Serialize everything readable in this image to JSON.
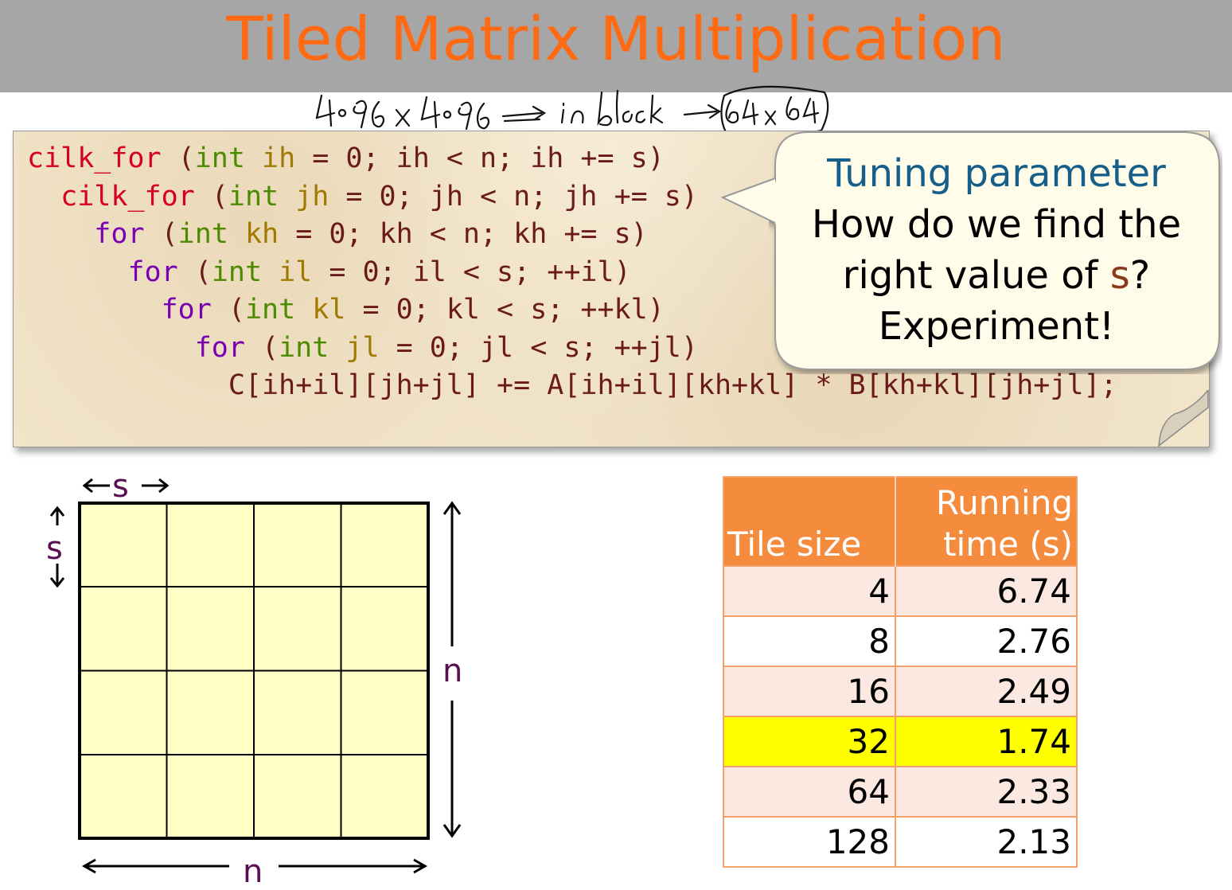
{
  "title": "Tiled Matrix Multiplication",
  "annotation": "4096 x 4096 -> in block -> 64x64",
  "code": [
    {
      "indent": "",
      "keyword": "cilk_for",
      "kwclass": "kw-cilk",
      "var": "ih",
      "init": " = 0; ",
      "cond": "ih < n; ih += s)"
    },
    {
      "indent": "  ",
      "keyword": "cilk_for",
      "kwclass": "kw-cilk",
      "var": "jh",
      "init": " = 0; ",
      "cond": "jh < n; jh += s)"
    },
    {
      "indent": "    ",
      "keyword": "for",
      "kwclass": "kw-for",
      "var": "kh",
      "init": " = 0; ",
      "cond": "kh < n; kh += s)"
    },
    {
      "indent": "      ",
      "keyword": "for",
      "kwclass": "kw-for",
      "var": "il",
      "init": " = 0; ",
      "cond": "il < s; ++il)"
    },
    {
      "indent": "        ",
      "keyword": "for",
      "kwclass": "kw-for",
      "var": "kl",
      "init": " = 0; ",
      "cond": "kl < s; ++kl)"
    },
    {
      "indent": "          ",
      "keyword": "for",
      "kwclass": "kw-for",
      "var": "jl",
      "init": " = 0; ",
      "cond": "jl < s; ++jl)"
    }
  ],
  "code_body": "            C[ih+il][jh+jl] += A[ih+il][kh+kl] * B[kh+kl][jh+jl];",
  "callout": {
    "heading": "Tuning parameter",
    "line1": "How do we find the",
    "line2_prefix": "right value of ",
    "line2_var": "s",
    "line2_suffix": "?",
    "line3": "Experiment!"
  },
  "diagram": {
    "s_top": "s",
    "s_left": "s",
    "n_right": "n",
    "n_bottom": "n"
  },
  "table": {
    "header_tile": "Tile size",
    "header_time_1": "Running",
    "header_time_2": "time (s)",
    "rows": [
      {
        "tile": "4",
        "time": "6.74"
      },
      {
        "tile": "8",
        "time": "2.76"
      },
      {
        "tile": "16",
        "time": "2.49"
      },
      {
        "tile": "32",
        "time": "1.74"
      },
      {
        "tile": "64",
        "time": "2.33"
      },
      {
        "tile": "128",
        "time": "2.13"
      }
    ],
    "highlight_color": "#ffff00"
  }
}
